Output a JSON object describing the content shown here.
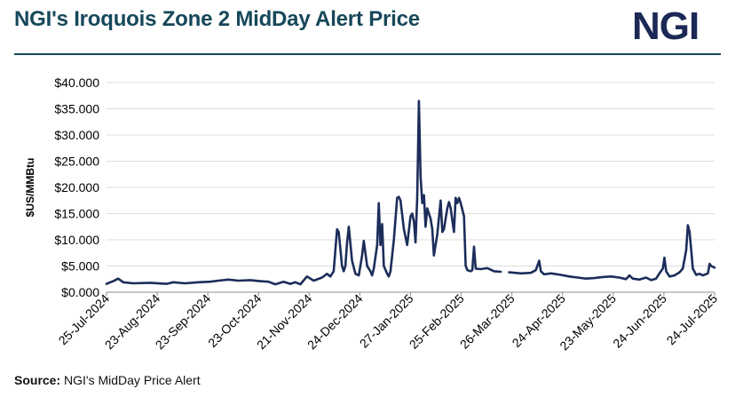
{
  "header": {
    "title": "NGI's Iroquois Zone 2 MidDay Alert Price",
    "logo_text": "NGI"
  },
  "footer": {
    "source_label": "Source:",
    "source_text": "NGI's MidDay Price Alert"
  },
  "colors": {
    "title": "#16485a",
    "logo": "#1c2855",
    "line": "#1c2d5a"
  },
  "chart_data": {
    "type": "line",
    "title": "",
    "xlabel": "",
    "ylabel": "$US/MMBtu",
    "ylim": [
      0,
      40
    ],
    "yticks": [
      "$0.000",
      "$5.000",
      "$10.000",
      "$15.000",
      "$20.000",
      "$25.000",
      "$30.000",
      "$35.000",
      "$40.000"
    ],
    "xticks": [
      "25-Jul-2024",
      "23-Aug-2024",
      "23-Sep-2024",
      "23-Oct-2024",
      "21-Nov-2024",
      "24-Dec-2024",
      "27-Jan-2025",
      "25-Feb-2025",
      "26-Mar-2025",
      "24-Apr-2025",
      "23-May-2025",
      "24-Jun-2025",
      "24-Jul-2025"
    ],
    "x_range": [
      "2024-07-25",
      "2025-07-24"
    ],
    "grid": "horizontal",
    "legend": "none",
    "series": [
      {
        "segments": [
          [
            [
              "2024-07-25",
              1.6
            ],
            [
              "2024-07-29",
              2.1
            ],
            [
              "2024-08-01",
              2.6
            ],
            [
              "2024-08-04",
              1.9
            ],
            [
              "2024-08-10",
              1.7
            ],
            [
              "2024-08-20",
              1.8
            ],
            [
              "2024-08-30",
              1.6
            ],
            [
              "2024-09-03",
              1.9
            ],
            [
              "2024-09-10",
              1.7
            ],
            [
              "2024-09-18",
              1.9
            ],
            [
              "2024-09-25",
              2.0
            ],
            [
              "2024-09-30",
              2.2
            ],
            [
              "2024-10-06",
              2.4
            ],
            [
              "2024-10-12",
              2.2
            ],
            [
              "2024-10-19",
              2.3
            ],
            [
              "2024-10-25",
              2.1
            ],
            [
              "2024-10-30",
              2.0
            ],
            [
              "2024-11-03",
              1.5
            ],
            [
              "2024-11-08",
              2.0
            ],
            [
              "2024-11-12",
              1.6
            ],
            [
              "2024-11-15",
              1.9
            ],
            [
              "2024-11-18",
              1.5
            ],
            [
              "2024-11-22",
              3.0
            ],
            [
              "2024-11-26",
              2.2
            ],
            [
              "2024-12-01",
              2.8
            ],
            [
              "2024-12-04",
              3.5
            ],
            [
              "2024-12-06",
              3.0
            ],
            [
              "2024-12-08",
              4.0
            ],
            [
              "2024-12-10",
              12.0
            ],
            [
              "2024-12-11",
              11.5
            ],
            [
              "2024-12-13",
              5.0
            ],
            [
              "2024-12-14",
              4.0
            ],
            [
              "2024-12-15",
              5.0
            ],
            [
              "2024-12-16",
              9.5
            ],
            [
              "2024-12-17",
              12.5
            ],
            [
              "2024-12-19",
              6.0
            ],
            [
              "2024-12-21",
              3.5
            ],
            [
              "2024-12-23",
              3.2
            ],
            [
              "2024-12-25",
              7.0
            ],
            [
              "2024-12-26",
              9.8
            ],
            [
              "2024-12-28",
              5.0
            ],
            [
              "2024-12-30",
              4.0
            ],
            [
              "2024-12-31",
              3.2
            ],
            [
              "2025-01-01",
              4.5
            ],
            [
              "2025-01-03",
              9.0
            ],
            [
              "2025-01-04",
              17.0
            ],
            [
              "2025-01-05",
              9.0
            ],
            [
              "2025-01-06",
              13.0
            ],
            [
              "2025-01-07",
              5.0
            ],
            [
              "2025-01-09",
              3.5
            ],
            [
              "2025-01-10",
              3.0
            ],
            [
              "2025-01-11",
              4.0
            ],
            [
              "2025-01-13",
              10.0
            ],
            [
              "2025-01-15",
              18.0
            ],
            [
              "2025-01-16",
              18.2
            ],
            [
              "2025-01-17",
              17.5
            ],
            [
              "2025-01-19",
              12.0
            ],
            [
              "2025-01-21",
              9.0
            ],
            [
              "2025-01-23",
              14.5
            ],
            [
              "2025-01-24",
              15.0
            ],
            [
              "2025-01-25",
              13.5
            ],
            [
              "2025-01-26",
              9.5
            ],
            [
              "2025-01-27",
              18.0
            ],
            [
              "2025-01-28",
              36.5
            ],
            [
              "2025-01-29",
              22.0
            ],
            [
              "2025-01-30",
              17.0
            ],
            [
              "2025-01-31",
              18.5
            ],
            [
              "2025-02-01",
              12.5
            ],
            [
              "2025-02-02",
              16.0
            ],
            [
              "2025-02-04",
              14.0
            ],
            [
              "2025-02-05",
              12.0
            ],
            [
              "2025-02-06",
              7.0
            ],
            [
              "2025-02-08",
              11.0
            ],
            [
              "2025-02-10",
              17.5
            ],
            [
              "2025-02-11",
              11.5
            ],
            [
              "2025-02-12",
              12.0
            ],
            [
              "2025-02-14",
              16.0
            ],
            [
              "2025-02-15",
              17.2
            ],
            [
              "2025-02-16",
              16.0
            ],
            [
              "2025-02-18",
              11.5
            ],
            [
              "2025-02-19",
              18.0
            ],
            [
              "2025-02-20",
              17.0
            ],
            [
              "2025-02-21",
              18.0
            ],
            [
              "2025-02-22",
              17.0
            ],
            [
              "2025-02-24",
              14.5
            ],
            [
              "2025-02-25",
              5.0
            ],
            [
              "2025-02-26",
              4.2
            ],
            [
              "2025-02-28",
              4.0
            ],
            [
              "2025-03-01",
              4.2
            ],
            [
              "2025-03-02",
              8.7
            ],
            [
              "2025-03-03",
              4.5
            ],
            [
              "2025-03-06",
              4.4
            ],
            [
              "2025-03-10",
              4.6
            ],
            [
              "2025-03-14",
              4.0
            ],
            [
              "2025-03-18",
              3.9
            ]
          ],
          [
            [
              "2025-03-23",
              3.8
            ],
            [
              "2025-03-30",
              3.6
            ],
            [
              "2025-04-05",
              3.7
            ],
            [
              "2025-04-08",
              4.2
            ],
            [
              "2025-04-10",
              6.0
            ],
            [
              "2025-04-11",
              4.0
            ],
            [
              "2025-04-13",
              3.4
            ],
            [
              "2025-04-17",
              3.6
            ],
            [
              "2025-04-23",
              3.3
            ],
            [
              "2025-04-28",
              3.0
            ],
            [
              "2025-05-03",
              2.8
            ],
            [
              "2025-05-08",
              2.6
            ],
            [
              "2025-05-13",
              2.7
            ],
            [
              "2025-05-18",
              2.9
            ],
            [
              "2025-05-23",
              3.0
            ],
            [
              "2025-05-28",
              2.8
            ],
            [
              "2025-06-01",
              2.5
            ],
            [
              "2025-06-03",
              3.2
            ],
            [
              "2025-06-05",
              2.6
            ],
            [
              "2025-06-09",
              2.4
            ],
            [
              "2025-06-13",
              2.8
            ],
            [
              "2025-06-16",
              2.3
            ],
            [
              "2025-06-19",
              2.6
            ],
            [
              "2025-06-21",
              3.6
            ],
            [
              "2025-06-23",
              4.5
            ],
            [
              "2025-06-24",
              6.6
            ],
            [
              "2025-06-25",
              4.0
            ],
            [
              "2025-06-27",
              3.0
            ],
            [
              "2025-06-30",
              3.2
            ],
            [
              "2025-07-03",
              3.8
            ],
            [
              "2025-07-05",
              4.5
            ],
            [
              "2025-07-07",
              8.0
            ],
            [
              "2025-07-08",
              12.8
            ],
            [
              "2025-07-09",
              11.5
            ],
            [
              "2025-07-10",
              8.0
            ],
            [
              "2025-07-11",
              4.5
            ],
            [
              "2025-07-13",
              3.3
            ],
            [
              "2025-07-15",
              3.5
            ],
            [
              "2025-07-17",
              3.2
            ],
            [
              "2025-07-20",
              3.6
            ],
            [
              "2025-07-21",
              5.4
            ],
            [
              "2025-07-22",
              5.0
            ],
            [
              "2025-07-24",
              4.7
            ]
          ]
        ]
      }
    ]
  }
}
